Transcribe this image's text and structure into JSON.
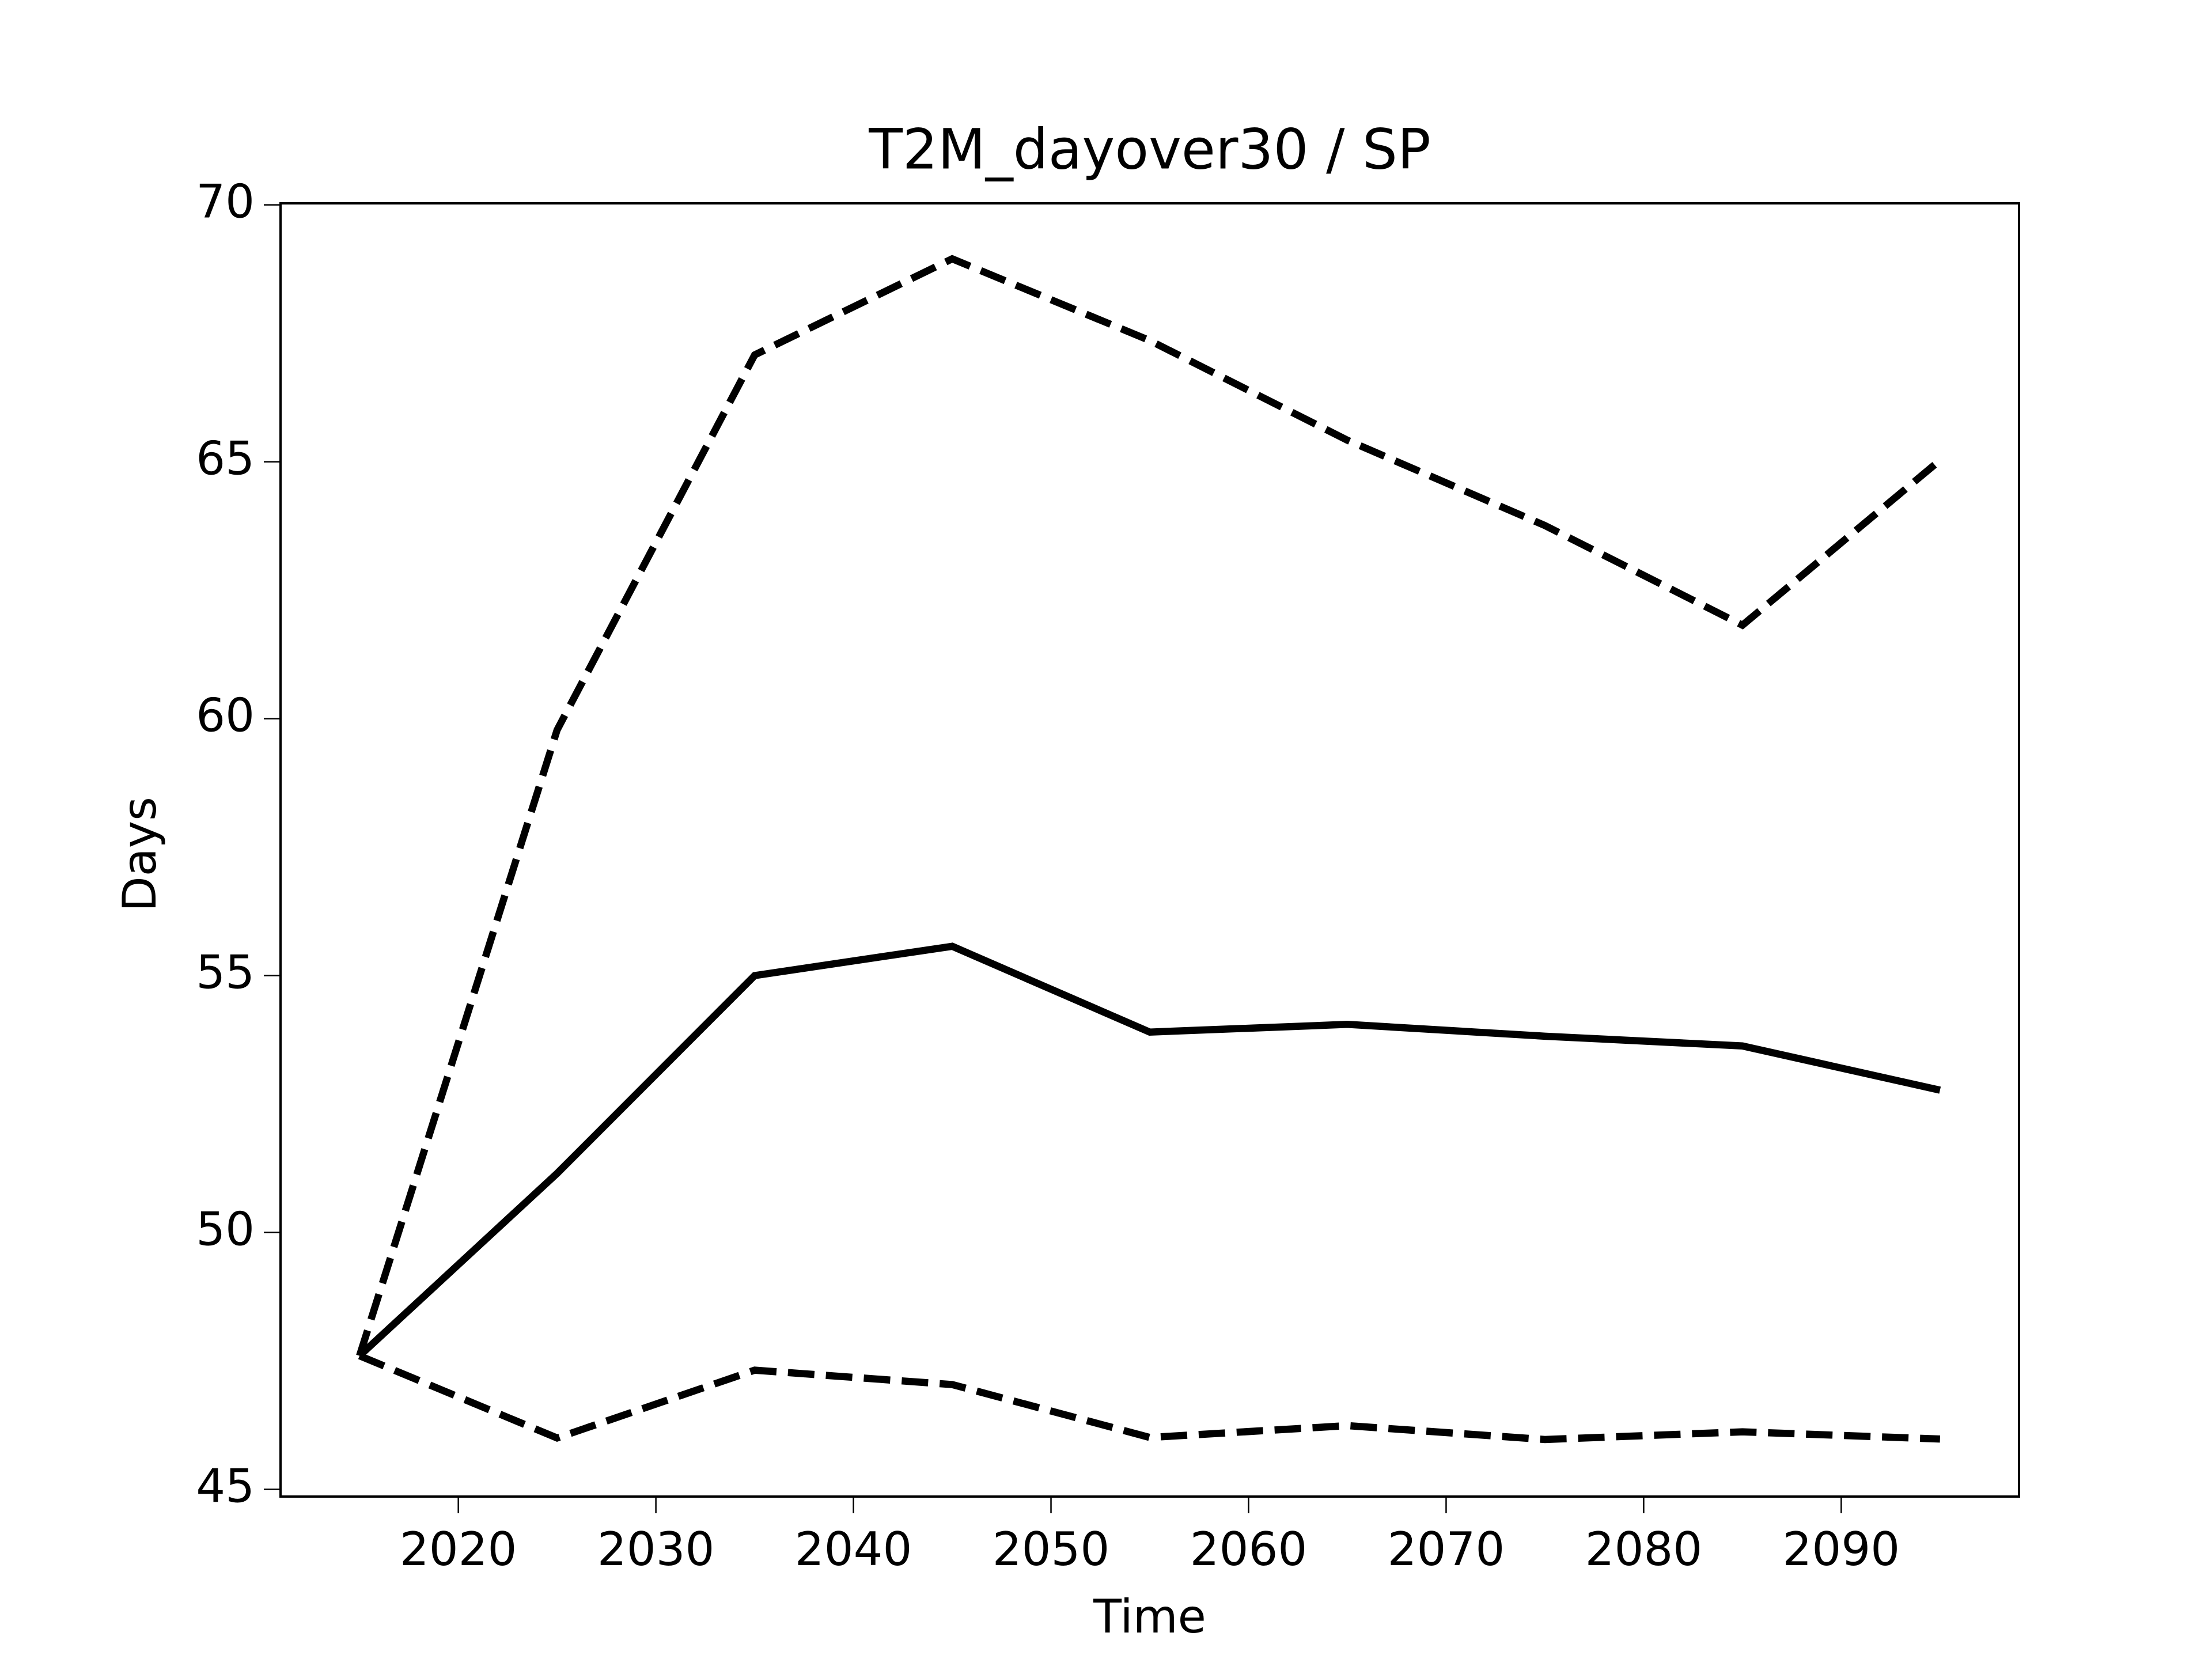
{
  "chart_data": {
    "type": "line",
    "title": "T2M_dayover30 / SP",
    "xlabel": "Time",
    "ylabel": "Days",
    "x": [
      2015,
      2025,
      2035,
      2045,
      2055,
      2065,
      2075,
      2085,
      2095
    ],
    "series": [
      {
        "color": "#000000",
        "dash": "solid",
        "values": [
          47.6,
          51.15,
          55.0,
          55.57,
          53.9,
          54.05,
          53.82,
          53.63,
          52.77
        ]
      },
      {
        "color": "#000000",
        "dash": "dashed",
        "values": [
          47.6,
          59.78,
          67.08,
          68.95,
          67.36,
          65.42,
          63.76,
          61.82,
          65.03
        ]
      },
      {
        "color": "#000000",
        "dash": "dashed",
        "values": [
          47.6,
          46.0,
          47.32,
          47.04,
          46.01,
          46.24,
          45.97,
          46.12,
          45.98
        ]
      }
    ],
    "xlim": [
      2011,
      2099
    ],
    "xticks": [
      2020,
      2030,
      2040,
      2050,
      2060,
      2070,
      2080,
      2090
    ],
    "ylim": [
      44.86,
      70.03
    ],
    "yticks": [
      45,
      50,
      55,
      60,
      65,
      70
    ],
    "grid": false
  }
}
